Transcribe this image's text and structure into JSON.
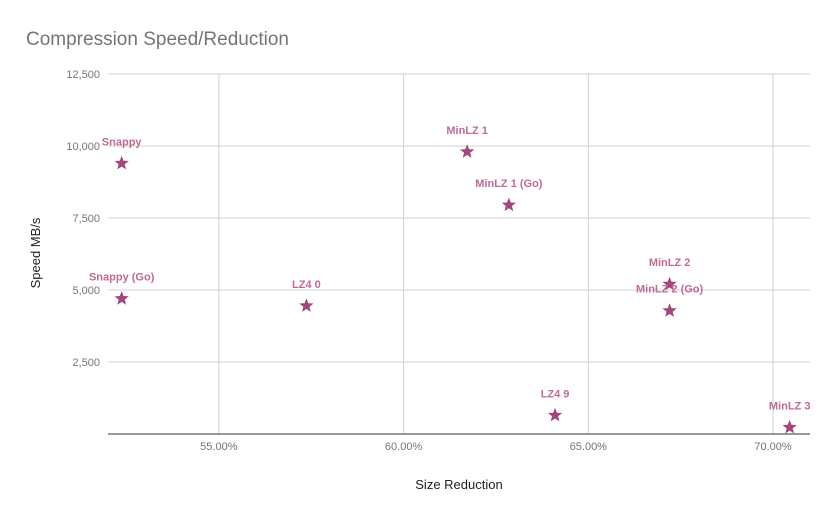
{
  "chart_data": {
    "type": "scatter",
    "title": "Compression Speed/Reduction",
    "xlabel": "Size Reduction",
    "ylabel": "Speed MB/s",
    "xlim": [
      0.52,
      0.71
    ],
    "ylim": [
      0,
      12500
    ],
    "x_ticks": [
      0.55,
      0.6,
      0.65,
      0.7
    ],
    "x_tick_labels": [
      "55.00%",
      "60.00%",
      "65.00%",
      "70.00%"
    ],
    "y_ticks": [
      2500,
      5000,
      7500,
      10000,
      12500
    ],
    "y_tick_labels": [
      "2,500",
      "5,000",
      "7,500",
      "10,000",
      "12,500"
    ],
    "grid": true,
    "marker": "star",
    "color": "#a2467c",
    "label_color": "#c06a96",
    "points": [
      {
        "label": "Snappy",
        "x": 0.5237,
        "y": 9400
      },
      {
        "label": "Snappy (Go)",
        "x": 0.5237,
        "y": 4700
      },
      {
        "label": "LZ4 0",
        "x": 0.5737,
        "y": 4450
      },
      {
        "label": "MinLZ 1",
        "x": 0.6172,
        "y": 9800
      },
      {
        "label": "MinLZ 1 (Go)",
        "x": 0.6285,
        "y": 7950
      },
      {
        "label": "LZ4 9",
        "x": 0.641,
        "y": 650
      },
      {
        "label": "MinLZ 2",
        "x": 0.672,
        "y": 5200
      },
      {
        "label": "MinLZ 2 (Go)",
        "x": 0.672,
        "y": 4280
      },
      {
        "label": "MinLZ 3",
        "x": 0.7045,
        "y": 230
      }
    ]
  }
}
